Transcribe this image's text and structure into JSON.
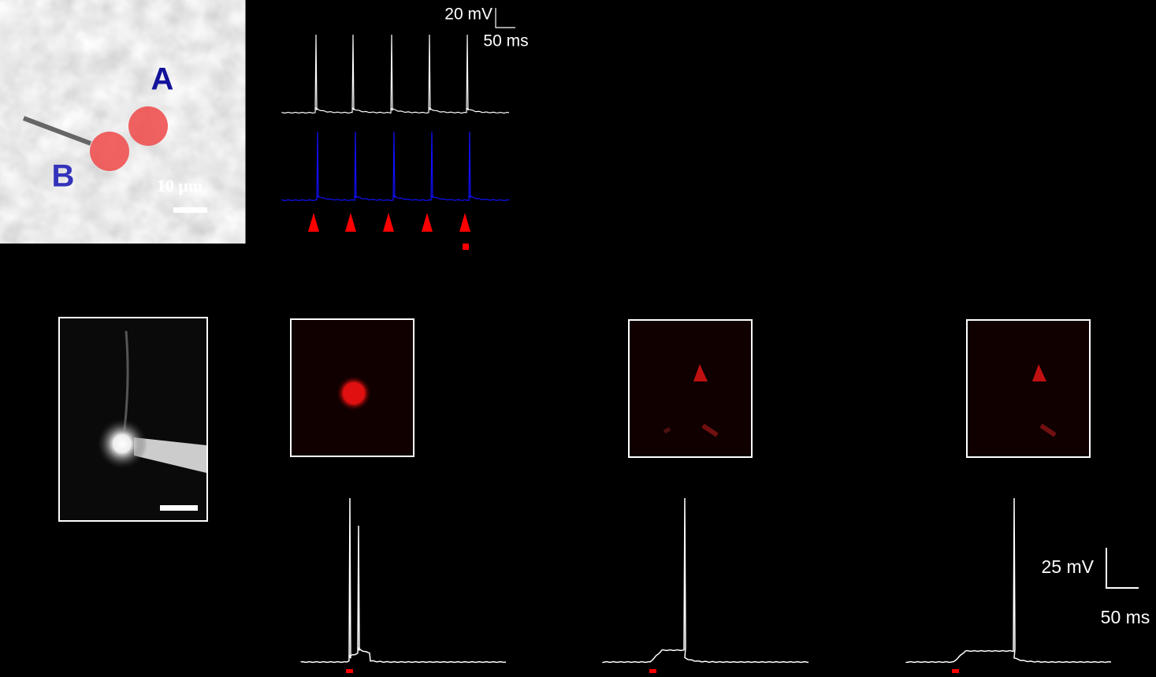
{
  "top": {
    "cell_a_label": "A",
    "cell_b_label": "B",
    "scale_bar_image": "10 μm",
    "scale_bar_voltage": "20 mV",
    "scale_bar_time": "50 ms"
  },
  "bottom": {
    "scale_bar_voltage": "25 mV",
    "scale_bar_time": "50 ms"
  }
}
